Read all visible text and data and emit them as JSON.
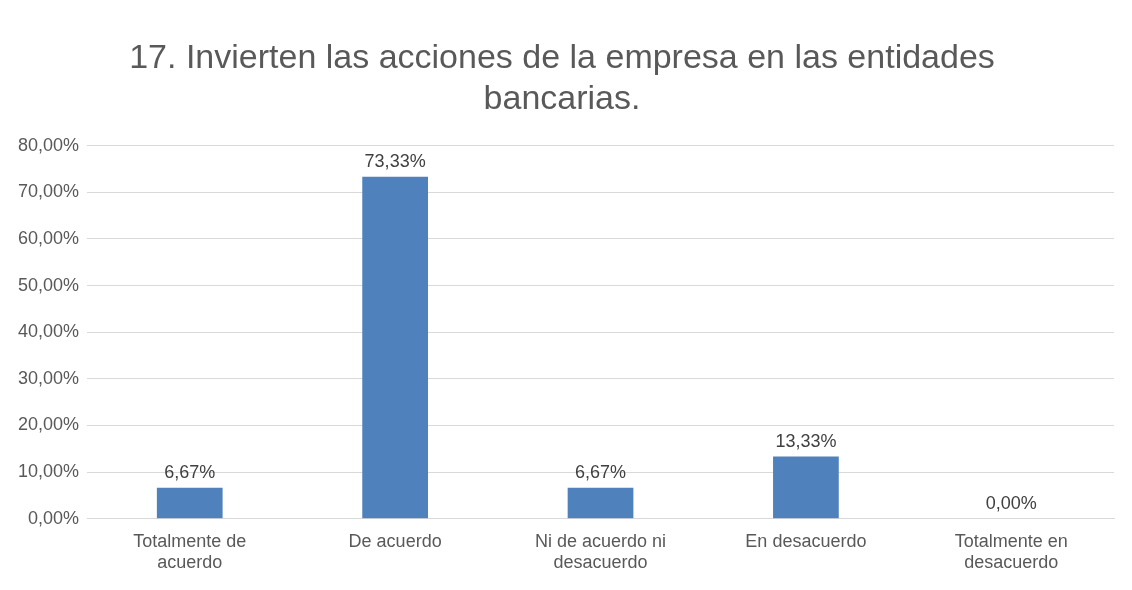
{
  "chart_data": {
    "type": "bar",
    "title": "17. Invierten las acciones de la empresa en las entidades bancarias.",
    "categories": [
      "Totalmente de acuerdo",
      "De acuerdo",
      "Ni de acuerdo ni desacuerdo",
      "En desacuerdo",
      "Totalmente en desacuerdo"
    ],
    "values": [
      6.67,
      73.33,
      6.67,
      13.33,
      0
    ],
    "value_labels": [
      "6,67%",
      "73,33%",
      "6,67%",
      "13,33%",
      "0,00%"
    ],
    "color": "#4f81bd",
    "ylim": [
      0,
      80
    ],
    "yticks": [
      {
        "value": 0,
        "label": "0,00%"
      },
      {
        "value": 10,
        "label": "10,00%"
      },
      {
        "value": 20,
        "label": "20,00%"
      },
      {
        "value": 30,
        "label": "30,00%"
      },
      {
        "value": 40,
        "label": "40,00%"
      },
      {
        "value": 50,
        "label": "50,00%"
      },
      {
        "value": 60,
        "label": "60,00%"
      },
      {
        "value": 70,
        "label": "70,00%"
      },
      {
        "value": 80,
        "label": "80,00%"
      }
    ],
    "grid": "y",
    "legend": false
  }
}
